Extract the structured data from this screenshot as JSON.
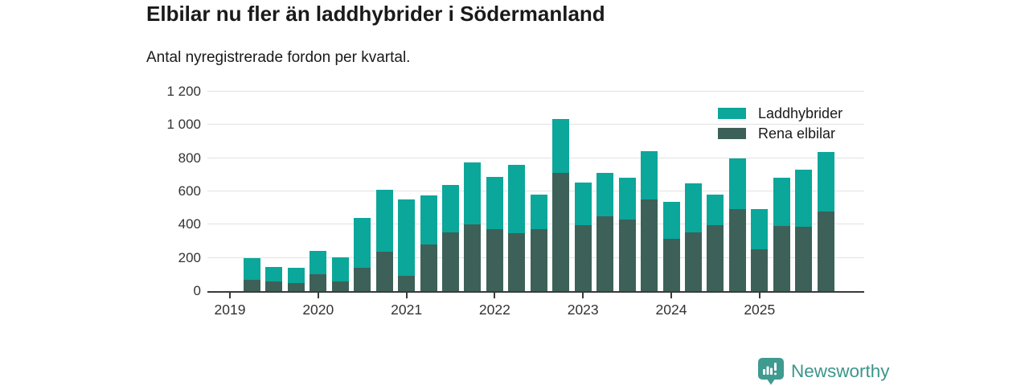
{
  "title": "Elbilar nu fler än laddhybrider i Södermanland",
  "subtitle": "Antal nyregistrerade fordon per kvartal.",
  "colors": {
    "laddhybrider": "#0ba79b",
    "rena_elbilar": "#3d6158",
    "gridline": "#e2e2e2",
    "axis": "#3a3a3a",
    "text": "#1a1a1a",
    "brand": "#3c958b"
  },
  "legend": [
    {
      "label": "Laddhybrider",
      "color": "#0ba79b"
    },
    {
      "label": "Rena elbilar",
      "color": "#3d6158"
    }
  ],
  "brand": {
    "name": "Newsworthy"
  },
  "chart_data": {
    "type": "bar",
    "stacked": true,
    "title": "Elbilar nu fler än laddhybrider i Södermanland",
    "subtitle": "Antal nyregistrerade fordon per kvartal.",
    "x": [
      "2019 Q2",
      "2019 Q3",
      "2019 Q4",
      "2020 Q1",
      "2020 Q2",
      "2020 Q3",
      "2020 Q4",
      "2021 Q1",
      "2021 Q2",
      "2021 Q3",
      "2021 Q4",
      "2022 Q1",
      "2022 Q2",
      "2022 Q3",
      "2022 Q4",
      "2023 Q1",
      "2023 Q2",
      "2023 Q3",
      "2023 Q4",
      "2024 Q1",
      "2024 Q2",
      "2024 Q3",
      "2024 Q4",
      "2025 Q1",
      "2025 Q2",
      "2025 Q3",
      "2025 Q4"
    ],
    "series": [
      {
        "name": "Rena elbilar",
        "color": "#3d6158",
        "values": [
          70,
          60,
          50,
          100,
          60,
          140,
          235,
          90,
          280,
          355,
          400,
          375,
          350,
          375,
          710,
          395,
          450,
          430,
          550,
          315,
          355,
          395,
          495,
          250,
          390,
          385,
          480
        ]
      },
      {
        "name": "Laddhybrider",
        "color": "#0ba79b",
        "values": [
          130,
          85,
          90,
          140,
          145,
          300,
          375,
          460,
          295,
          285,
          375,
          310,
          410,
          205,
          325,
          260,
          260,
          250,
          290,
          220,
          295,
          185,
          305,
          245,
          290,
          345,
          355
        ]
      }
    ],
    "ylim": [
      0,
      1200
    ],
    "yticks": [
      0,
      200,
      400,
      600,
      800,
      1000,
      1200
    ],
    "ytick_labels": [
      "0",
      "200",
      "400",
      "600",
      "800",
      "1 000",
      "1 200"
    ],
    "xtick_years": [
      "2019",
      "2020",
      "2021",
      "2022",
      "2023",
      "2024",
      "2025"
    ],
    "grid": "horizontal",
    "legend_position": "top-right"
  }
}
